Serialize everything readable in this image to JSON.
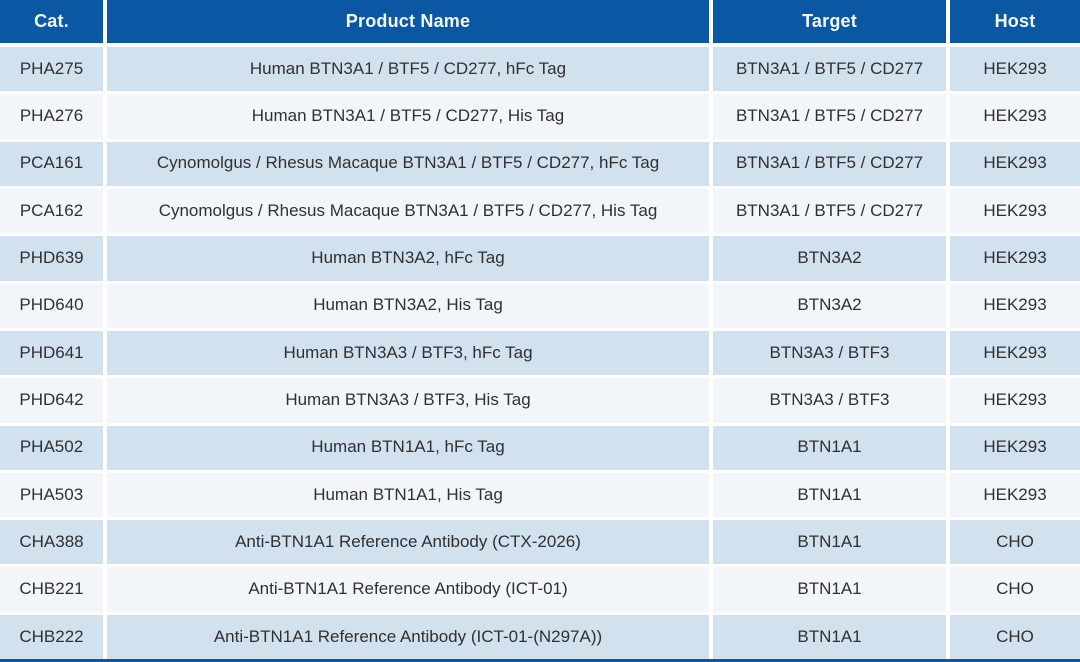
{
  "colors": {
    "header_bg": "#0c57a3",
    "header_text": "#f2f9fe",
    "row_alt_bg": "#d2e1ee",
    "row_bg": "#f2f6fa",
    "cell_text": "#303030",
    "separator": "#ffffff"
  },
  "table": {
    "columns": [
      {
        "key": "cat",
        "label": "Cat."
      },
      {
        "key": "product",
        "label": "Product Name"
      },
      {
        "key": "target",
        "label": "Target"
      },
      {
        "key": "host",
        "label": "Host"
      }
    ],
    "rows": [
      {
        "cat": "PHA275",
        "product": "Human BTN3A1 / BTF5 / CD277, hFc Tag",
        "target": "BTN3A1 / BTF5 / CD277",
        "host": "HEK293"
      },
      {
        "cat": "PHA276",
        "product": "Human BTN3A1 / BTF5 / CD277, His Tag",
        "target": "BTN3A1 / BTF5 / CD277",
        "host": "HEK293"
      },
      {
        "cat": "PCA161",
        "product": "Cynomolgus / Rhesus Macaque BTN3A1 / BTF5 / CD277, hFc Tag",
        "target": "BTN3A1 / BTF5 / CD277",
        "host": "HEK293"
      },
      {
        "cat": "PCA162",
        "product": "Cynomolgus / Rhesus Macaque BTN3A1 / BTF5 / CD277, His Tag",
        "target": "BTN3A1 / BTF5 / CD277",
        "host": "HEK293"
      },
      {
        "cat": "PHD639",
        "product": "Human BTN3A2, hFc Tag",
        "target": "BTN3A2",
        "host": "HEK293"
      },
      {
        "cat": "PHD640",
        "product": "Human BTN3A2, His Tag",
        "target": "BTN3A2",
        "host": "HEK293"
      },
      {
        "cat": "PHD641",
        "product": "Human BTN3A3 / BTF3, hFc Tag",
        "target": "BTN3A3 / BTF3",
        "host": "HEK293"
      },
      {
        "cat": "PHD642",
        "product": "Human BTN3A3 / BTF3, His Tag",
        "target": "BTN3A3 / BTF3",
        "host": "HEK293"
      },
      {
        "cat": "PHA502",
        "product": "Human BTN1A1, hFc Tag",
        "target": "BTN1A1",
        "host": "HEK293"
      },
      {
        "cat": "PHA503",
        "product": "Human BTN1A1, His Tag",
        "target": "BTN1A1",
        "host": "HEK293"
      },
      {
        "cat": "CHA388",
        "product": "Anti-BTN1A1 Reference Antibody (CTX-2026)",
        "target": "BTN1A1",
        "host": "CHO"
      },
      {
        "cat": "CHB221",
        "product": "Anti-BTN1A1 Reference Antibody (ICT-01)",
        "target": "BTN1A1",
        "host": "CHO"
      },
      {
        "cat": "CHB222",
        "product": "Anti-BTN1A1 Reference Antibody (ICT-01-(N297A))",
        "target": "BTN1A1",
        "host": "CHO"
      }
    ]
  }
}
